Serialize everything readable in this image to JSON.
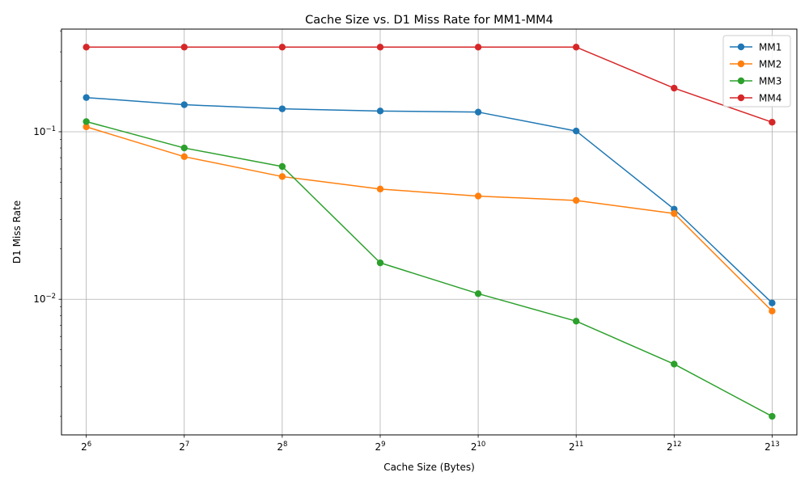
{
  "chart_data": {
    "type": "line",
    "title": "Cache Size vs. D1 Miss Rate for MM1-MM4",
    "xlabel": "Cache Size (Bytes)",
    "ylabel": "D1 Miss Rate",
    "x_scale": "log2",
    "y_scale": "log10",
    "x": [
      64,
      128,
      256,
      512,
      1024,
      2048,
      4096,
      8192
    ],
    "x_tick_labels": [
      {
        "base": "2",
        "exp": "6"
      },
      {
        "base": "2",
        "exp": "7"
      },
      {
        "base": "2",
        "exp": "8"
      },
      {
        "base": "2",
        "exp": "9"
      },
      {
        "base": "2",
        "exp": "10"
      },
      {
        "base": "2",
        "exp": "11"
      },
      {
        "base": "2",
        "exp": "12"
      },
      {
        "base": "2",
        "exp": "13"
      }
    ],
    "y_ticks": [
      0.01,
      0.1
    ],
    "y_tick_labels": [
      {
        "base": "10",
        "exp": "−2"
      },
      {
        "base": "10",
        "exp": "−1"
      }
    ],
    "xlim": [
      53.7,
      9760
    ],
    "ylim": [
      0.00155,
      0.41
    ],
    "grid": true,
    "legend_position": "top-right",
    "series": [
      {
        "name": "MM1",
        "color": "#1f77b4",
        "values": [
          0.16,
          0.145,
          0.137,
          0.133,
          0.131,
          0.101,
          0.0345,
          0.0095
        ]
      },
      {
        "name": "MM2",
        "color": "#ff7f0e",
        "values": [
          0.107,
          0.071,
          0.054,
          0.0455,
          0.0413,
          0.0389,
          0.0325,
          0.0085
        ]
      },
      {
        "name": "MM3",
        "color": "#2ca02c",
        "values": [
          0.115,
          0.08,
          0.062,
          0.0165,
          0.0108,
          0.0074,
          0.0041,
          0.002
        ]
      },
      {
        "name": "MM4",
        "color": "#d62728",
        "values": [
          0.32,
          0.32,
          0.32,
          0.32,
          0.32,
          0.32,
          0.182,
          0.114
        ]
      }
    ]
  }
}
